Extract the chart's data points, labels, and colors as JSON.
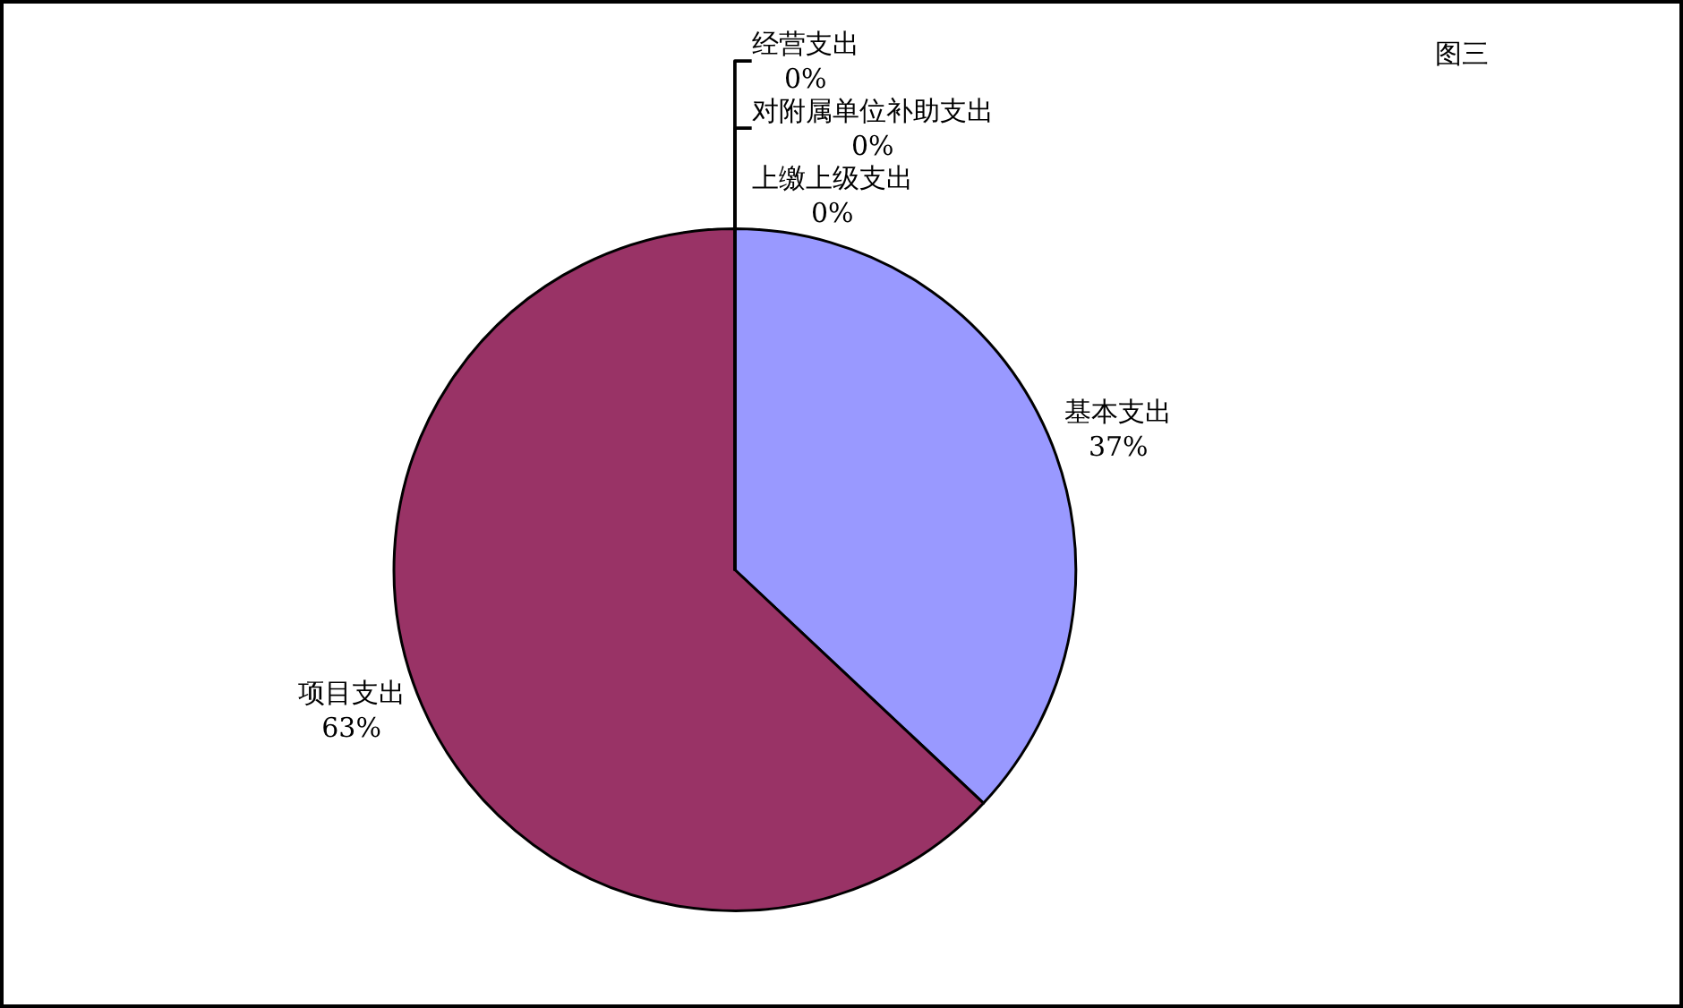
{
  "chart_data": {
    "type": "pie",
    "title": "图三",
    "categories": [
      "基本支出",
      "项目支出",
      "上缴上级支出",
      "对附属单位补助支出",
      "经营支出"
    ],
    "values": [
      37,
      63,
      0,
      0,
      0
    ],
    "value_labels": [
      "37%",
      "63%",
      "0%",
      "0%",
      "0%"
    ],
    "colors": [
      "#9999ff",
      "#993366",
      "#ffffcc",
      "#ccffff",
      "#660066"
    ],
    "legend": false
  }
}
